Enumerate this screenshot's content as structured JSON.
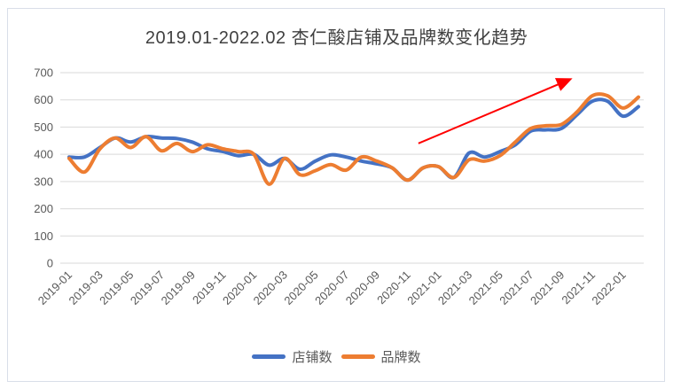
{
  "chart_data": {
    "type": "line",
    "title": "2019.01-2022.02 杏仁酸店铺及品牌数变化趋势",
    "x": [
      "2019-01",
      "2019-02",
      "2019-03",
      "2019-04",
      "2019-05",
      "2019-06",
      "2019-07",
      "2019-08",
      "2019-09",
      "2019-10",
      "2019-11",
      "2019-12",
      "2020-01",
      "2020-02",
      "2020-03",
      "2020-04",
      "2020-05",
      "2020-06",
      "2020-07",
      "2020-08",
      "2020-09",
      "2020-10",
      "2020-11",
      "2020-12",
      "2021-01",
      "2021-02",
      "2021-03",
      "2021-04",
      "2021-05",
      "2021-06",
      "2021-07",
      "2021-08",
      "2021-09",
      "2021-10",
      "2021-11",
      "2021-12",
      "2022-01",
      "2022-02"
    ],
    "x_tick_labels": [
      "2019-01",
      "2019-03",
      "2019-05",
      "2019-07",
      "2019-09",
      "2019-11",
      "2020-01",
      "2020-03",
      "2020-05",
      "2020-07",
      "2020-09",
      "2020-11",
      "2021-01",
      "2021-03",
      "2021-05",
      "2021-07",
      "2021-09",
      "2021-11",
      "2022-01"
    ],
    "series": [
      {
        "name": "店铺数",
        "color": "#4472C4",
        "values": [
          390,
          390,
          425,
          460,
          445,
          465,
          460,
          458,
          445,
          420,
          410,
          395,
          400,
          360,
          385,
          345,
          375,
          398,
          390,
          375,
          365,
          350,
          305,
          350,
          355,
          315,
          405,
          390,
          410,
          435,
          485,
          490,
          495,
          545,
          595,
          595,
          540,
          575
        ]
      },
      {
        "name": "品牌数",
        "color": "#ED7D31",
        "values": [
          385,
          335,
          420,
          460,
          425,
          465,
          413,
          440,
          410,
          435,
          420,
          410,
          400,
          290,
          385,
          325,
          340,
          362,
          342,
          390,
          375,
          350,
          305,
          350,
          355,
          315,
          380,
          375,
          395,
          445,
          495,
          505,
          510,
          555,
          615,
          615,
          570,
          610
        ]
      }
    ],
    "ylim": [
      0,
      700
    ],
    "y_ticks": [
      0,
      100,
      200,
      300,
      400,
      500,
      600,
      700
    ],
    "xlabel": "",
    "ylabel": "",
    "grid": "horizontal",
    "legend_position": "bottom",
    "smooth": true,
    "annotation": {
      "type": "arrow",
      "color": "#FF0000",
      "x_start_index": 22.7,
      "y_start": 440,
      "x_end_index": 32.5,
      "y_end": 674
    }
  },
  "colors": {
    "gridline": "#D9D9D9",
    "axis_labels": "#595959",
    "title": "#404040",
    "frame_border": "#D9DEE8",
    "background": "#FFFFFF"
  }
}
